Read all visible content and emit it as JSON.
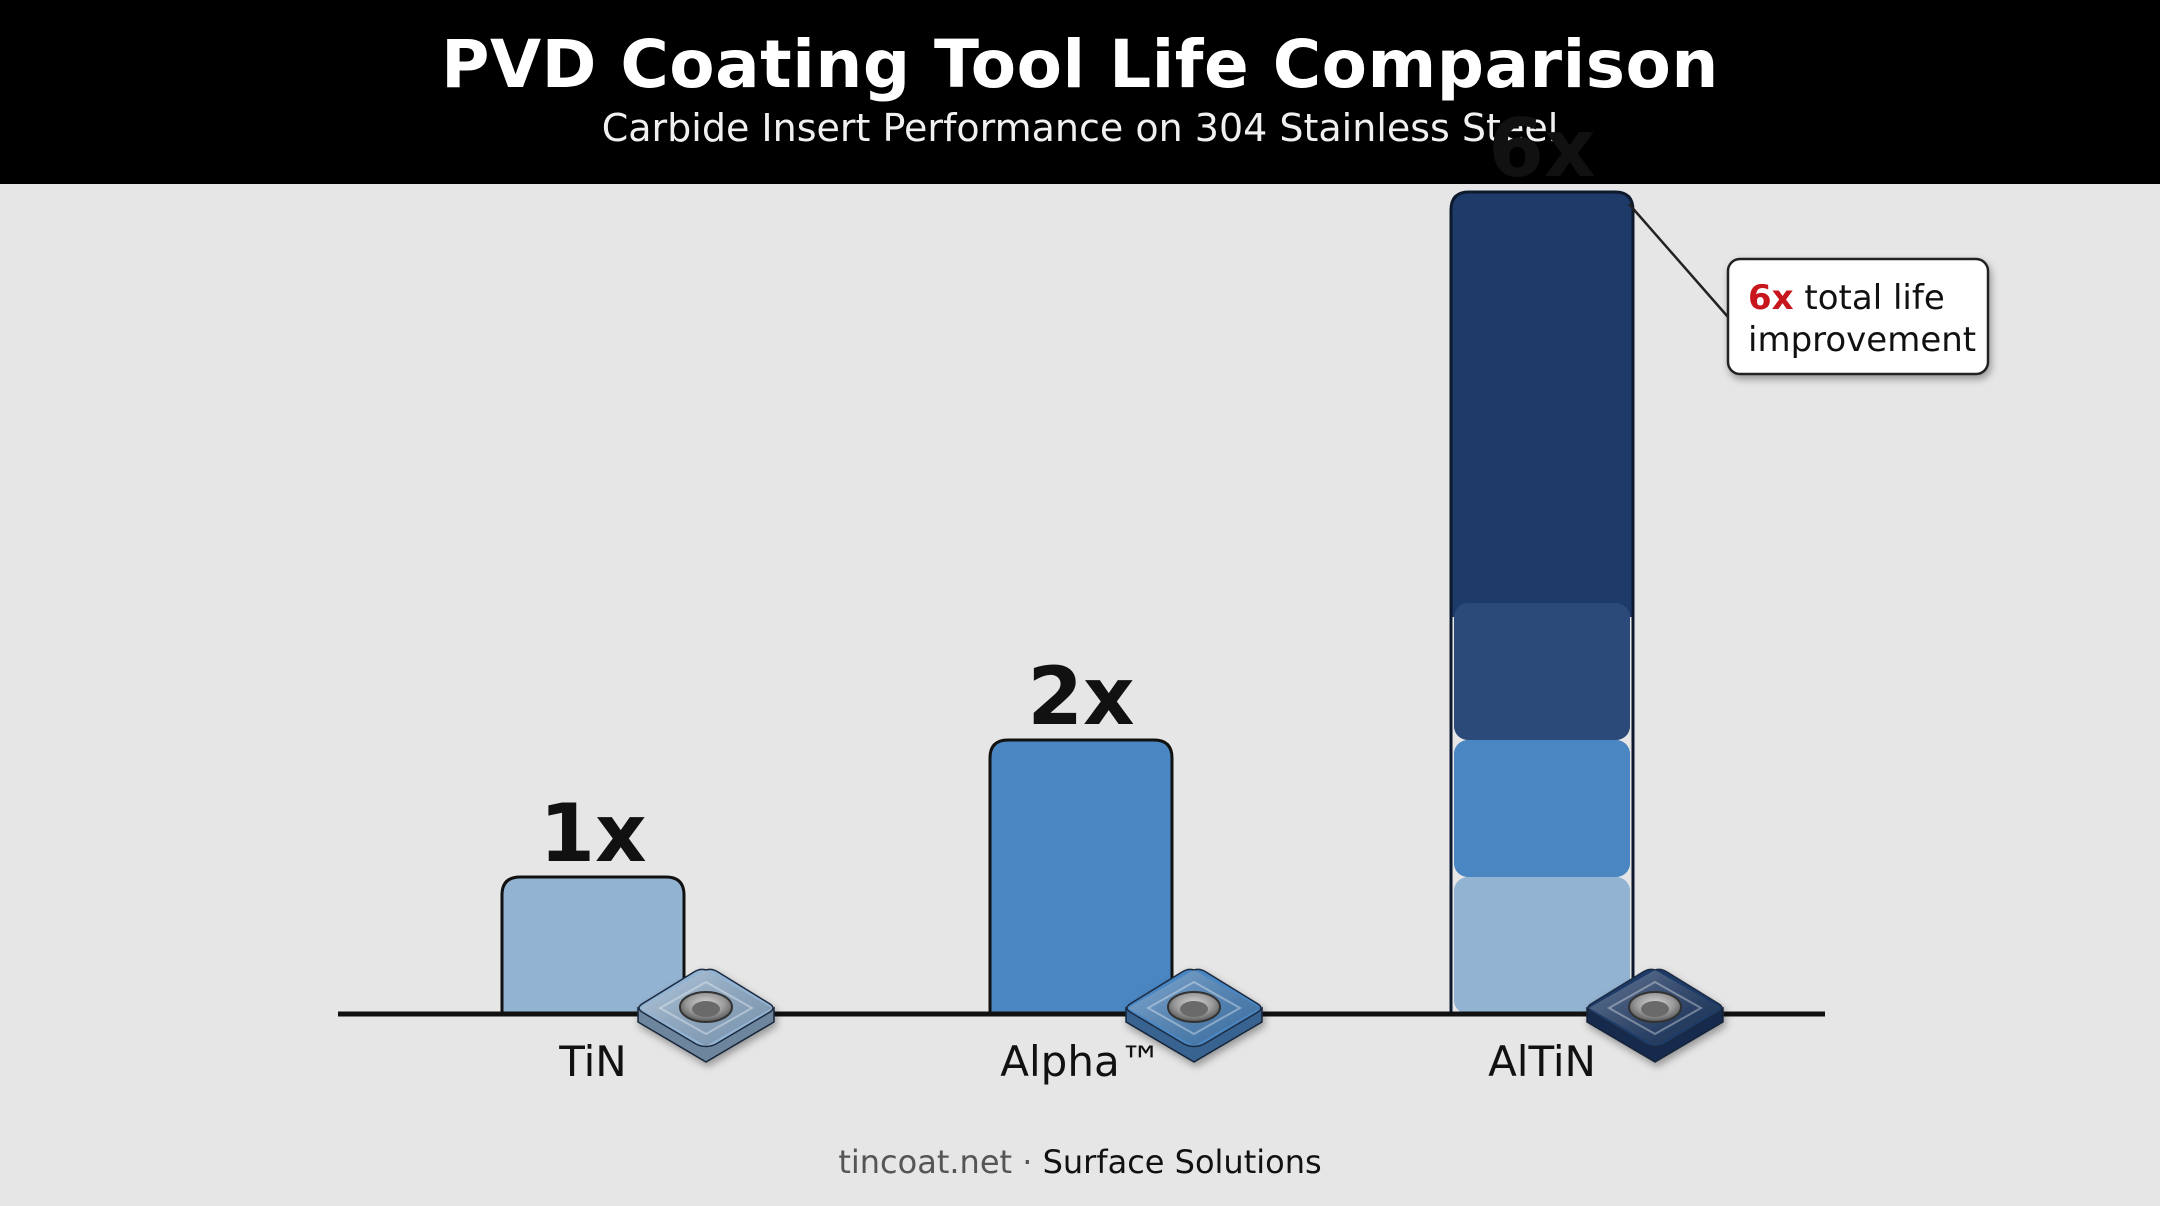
{
  "header": {
    "title": "PVD Coating Tool Life Comparison",
    "subtitle": "Carbide Insert Performance on 304 Stainless Steel"
  },
  "chart_data": {
    "type": "bar",
    "title": "PVD Coating Tool Life Comparison",
    "subtitle": "Carbide Insert Performance on 304 Stainless Steel",
    "categories": [
      "TiN",
      "Alpha™",
      "AlTiN"
    ],
    "values": [
      1,
      2,
      6
    ],
    "value_labels": [
      "1x",
      "2x",
      "6x"
    ],
    "ylim": [
      0,
      6
    ],
    "grid": false,
    "colors": [
      "#93b3d2",
      "#4a86c2",
      "#1d3a68"
    ],
    "segment_colors": [
      "#93b3d2",
      "#4a86c2",
      "#2b4a79",
      "#1d3a68"
    ],
    "callout": {
      "highlight": "6x",
      "text_line1": " total life",
      "text_line2": "improvement",
      "highlight_color": "#c8161d"
    }
  },
  "footer": {
    "site": "tincoat.net",
    "separator": " · ",
    "tagline": "Surface Solutions"
  }
}
